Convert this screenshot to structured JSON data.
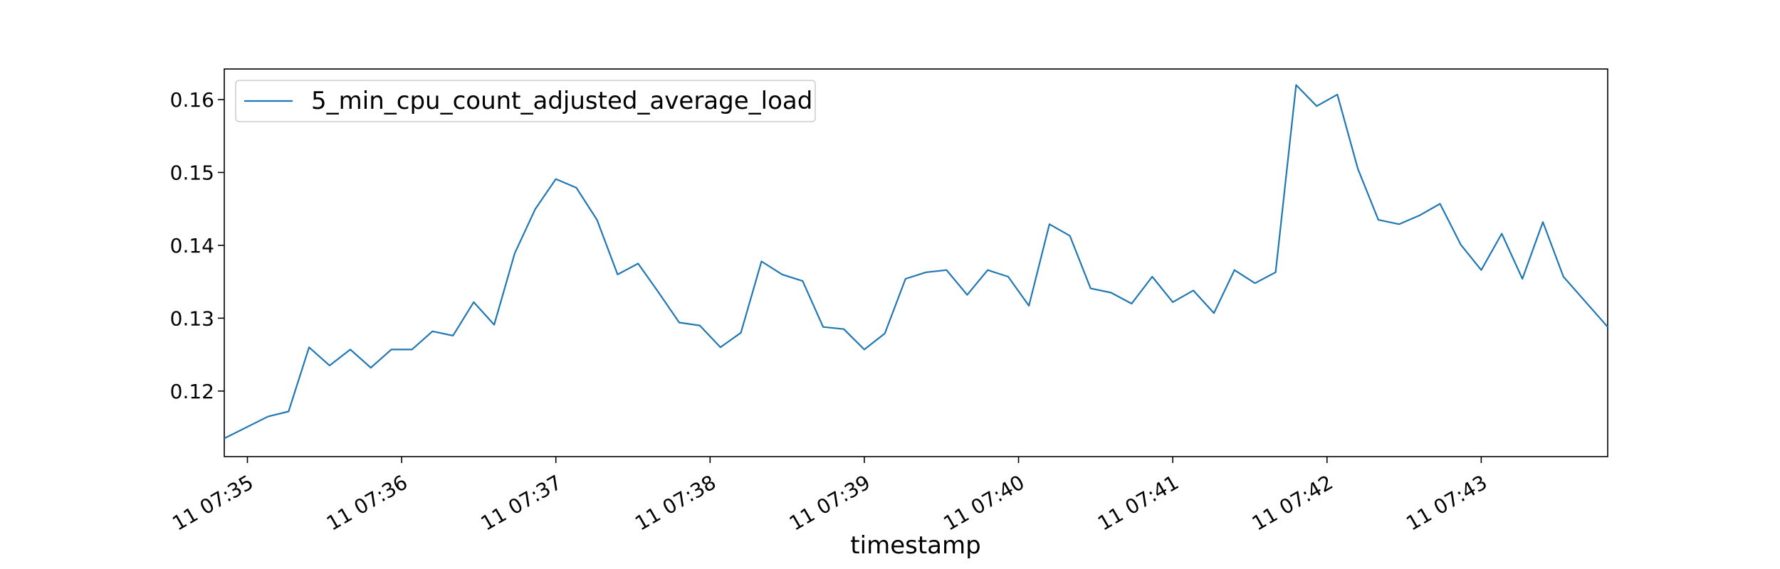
{
  "chart_data": {
    "type": "line",
    "title": "",
    "xlabel": "timestamp",
    "ylabel": "",
    "x_unit": "minutes",
    "x_ticks": [
      {
        "value": 0,
        "label": "11 07:35"
      },
      {
        "value": 1,
        "label": "11 07:36"
      },
      {
        "value": 2,
        "label": "11 07:37"
      },
      {
        "value": 3,
        "label": "11 07:38"
      },
      {
        "value": 4,
        "label": "11 07:39"
      },
      {
        "value": 5,
        "label": "11 07:40"
      },
      {
        "value": 6,
        "label": "11 07:41"
      },
      {
        "value": 7,
        "label": "11 07:42"
      },
      {
        "value": 8,
        "label": "11 07:43"
      }
    ],
    "y_ticks": [
      {
        "value": 0.12,
        "label": "0.12"
      },
      {
        "value": 0.13,
        "label": "0.13"
      },
      {
        "value": 0.14,
        "label": "0.14"
      },
      {
        "value": 0.15,
        "label": "0.15"
      },
      {
        "value": 0.16,
        "label": "0.16"
      }
    ],
    "xlim": [
      -0.15,
      8.82
    ],
    "ylim": [
      0.111,
      0.1642
    ],
    "grid": false,
    "legend_position": "top-left",
    "series": [
      {
        "name": "5_min_cpu_count_adjusted_average_load",
        "color": "#1f77b4",
        "x": [
          -0.15,
          0.133,
          0.267,
          0.4,
          0.533,
          0.667,
          0.8,
          0.933,
          1.067,
          1.2,
          1.333,
          1.467,
          1.6,
          1.733,
          1.867,
          2.0,
          2.133,
          2.267,
          2.4,
          2.533,
          2.667,
          2.8,
          2.933,
          3.067,
          3.2,
          3.333,
          3.467,
          3.6,
          3.733,
          3.867,
          4.0,
          4.133,
          4.267,
          4.4,
          4.533,
          4.667,
          4.8,
          4.933,
          5.067,
          5.2,
          5.333,
          5.467,
          5.6,
          5.733,
          5.867,
          6.0,
          6.133,
          6.267,
          6.4,
          6.533,
          6.667,
          6.8,
          6.933,
          7.067,
          7.2,
          7.333,
          7.467,
          7.6,
          7.733,
          7.867,
          8.0,
          8.133,
          8.267,
          8.4,
          8.533,
          8.82
        ],
        "y": [
          0.1135,
          0.1165,
          0.1172,
          0.126,
          0.1235,
          0.1257,
          0.1232,
          0.1257,
          0.1257,
          0.1282,
          0.1276,
          0.1322,
          0.1291,
          0.1389,
          0.145,
          0.1491,
          0.1479,
          0.1435,
          0.136,
          0.1375,
          0.1335,
          0.1294,
          0.129,
          0.126,
          0.128,
          0.1378,
          0.136,
          0.1351,
          0.1288,
          0.1285,
          0.1257,
          0.1279,
          0.1354,
          0.1363,
          0.1366,
          0.1332,
          0.1366,
          0.1357,
          0.1317,
          0.1429,
          0.1413,
          0.1341,
          0.1335,
          0.132,
          0.1357,
          0.1322,
          0.1338,
          0.1307,
          0.1366,
          0.1348,
          0.1363,
          0.162,
          0.1591,
          0.1607,
          0.1505,
          0.1435,
          0.1429,
          0.1441,
          0.1457,
          0.1401,
          0.1366,
          0.1416,
          0.1354,
          0.1432,
          0.1357,
          0.1288
        ]
      }
    ]
  }
}
